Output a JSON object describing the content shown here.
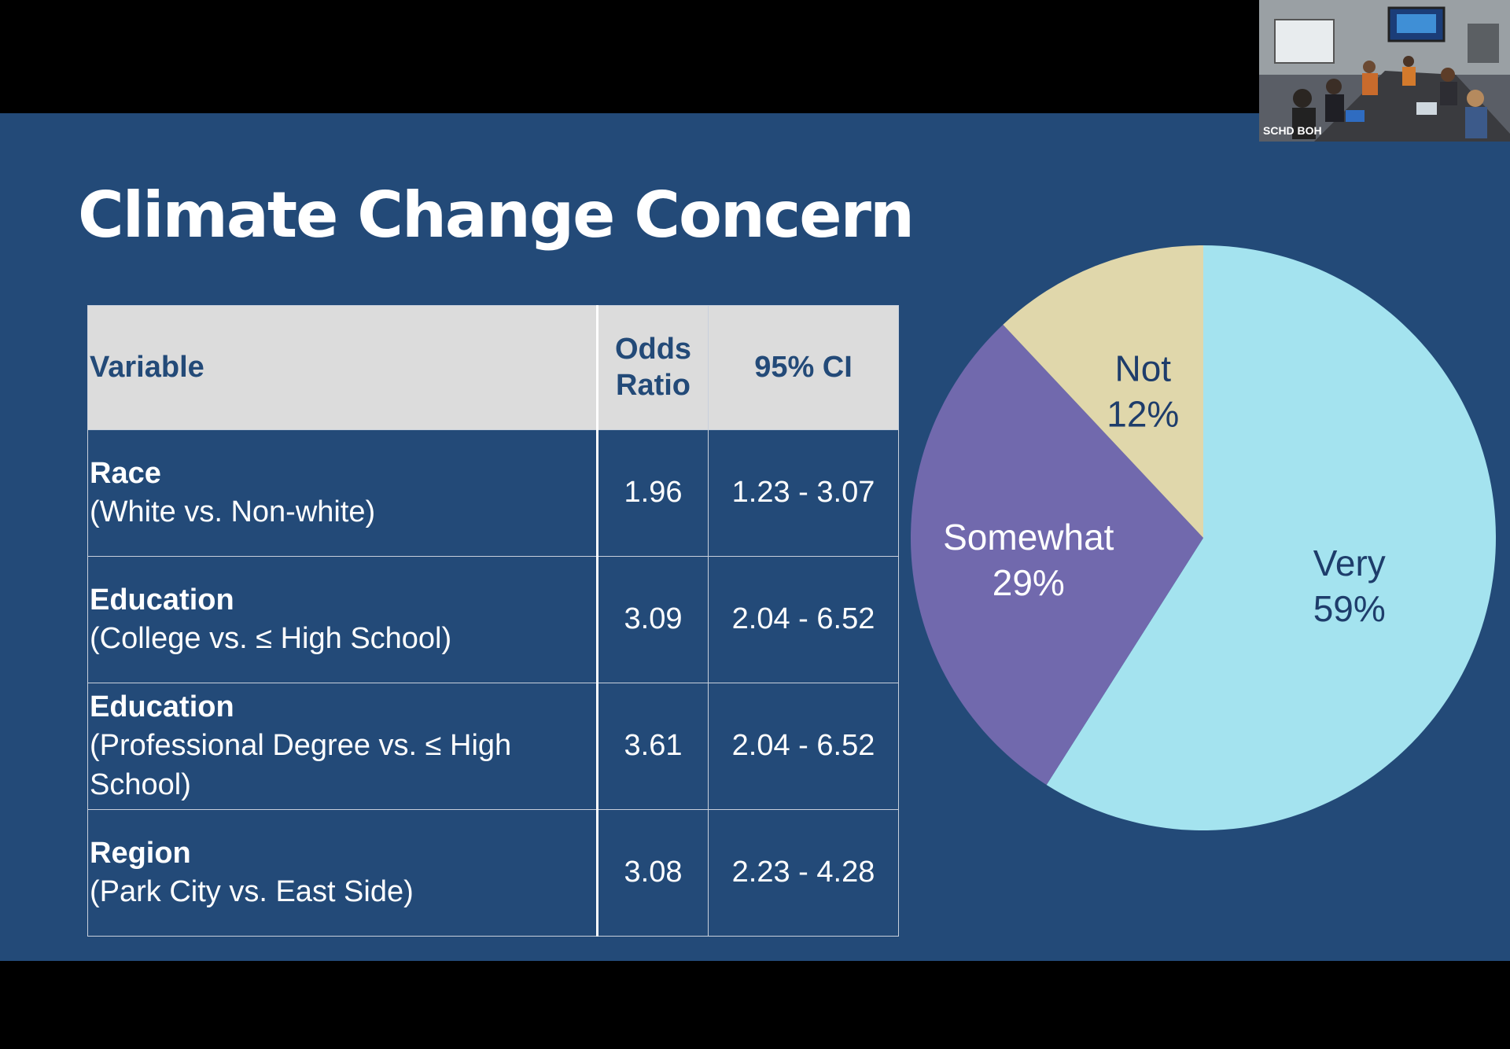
{
  "slide": {
    "title": "Climate Change Concern"
  },
  "table": {
    "headers": {
      "variable": "Variable",
      "odds_ratio": "Odds Ratio",
      "ci": "95% CI"
    },
    "rows": [
      {
        "name": "Race",
        "detail": "(White vs. Non-white)",
        "odds_ratio": "1.96",
        "ci": "1.23 - 3.07"
      },
      {
        "name": "Education",
        "detail": "(College vs. ≤ High School)",
        "odds_ratio": "3.09",
        "ci": "2.04 - 6.52"
      },
      {
        "name": "Education",
        "detail": "(Professional Degree vs. ≤ High School)",
        "odds_ratio": "3.61",
        "ci": "2.04 - 6.52"
      },
      {
        "name": "Region",
        "detail": "(Park City vs. East Side)",
        "odds_ratio": "3.08",
        "ci": "2.23 - 4.28"
      }
    ]
  },
  "chart_data": {
    "type": "pie",
    "slices": [
      {
        "label": "Very",
        "value": 59,
        "value_label": "59%",
        "color": "#a4e3ef"
      },
      {
        "label": "Somewhat",
        "value": 29,
        "value_label": "29%",
        "color": "#7169ad"
      },
      {
        "label": "Not",
        "value": 12,
        "value_label": "12%",
        "color": "#e0d7ab"
      }
    ],
    "start_angle": "12 o'clock",
    "direction": "clockwise"
  },
  "video_thumbnail": {
    "label": "SCHD BOH"
  },
  "colors": {
    "slide_background": "#234a78",
    "letterbox": "#000000",
    "header_background": "#dcdcdc",
    "header_text": "#234a78",
    "body_text": "#ffffff"
  }
}
